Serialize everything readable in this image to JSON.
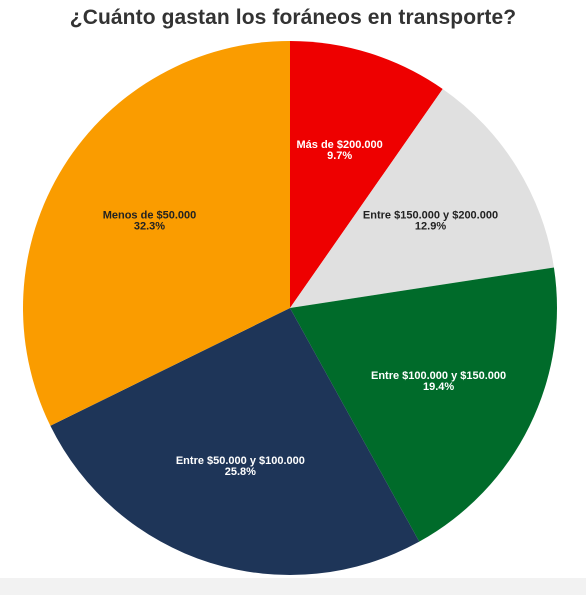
{
  "chart_data": {
    "type": "pie",
    "title": "¿Cuánto gastan los foráneos en transporte?",
    "slices": [
      {
        "label": "Más de $200.000",
        "percent_label": "9.7%",
        "value": 9.7,
        "color": "#ee0000",
        "text_color": "#ffffff"
      },
      {
        "label": "Entre $150.000 y $200.000",
        "percent_label": "12.9%",
        "value": 12.9,
        "color": "#e0e0e0",
        "text_color": "#222222"
      },
      {
        "label": "Entre $100.000 y $150.000",
        "percent_label": "19.4%",
        "value": 19.4,
        "color": "#006b2a",
        "text_color": "#ffffff"
      },
      {
        "label": "Entre $50.000 y $100.000",
        "percent_label": "25.8%",
        "value": 25.8,
        "color": "#1e3558",
        "text_color": "#ffffff"
      },
      {
        "label": "Menos de $50.000",
        "percent_label": "32.3%",
        "value": 32.3,
        "color": "#fa9c00",
        "text_color": "#222222"
      }
    ]
  }
}
